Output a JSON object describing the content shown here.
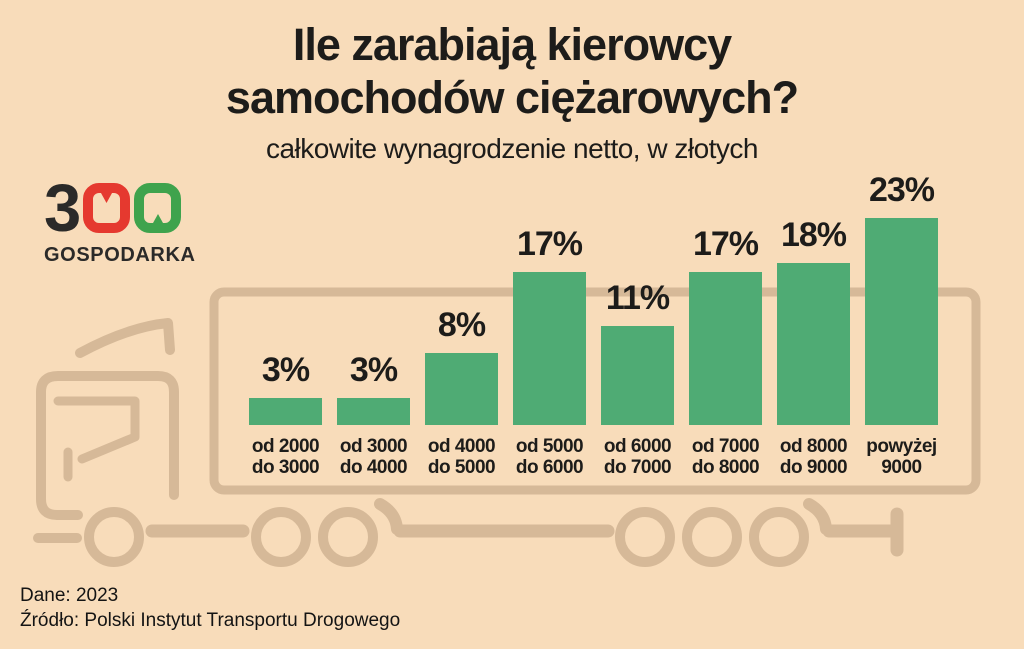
{
  "title": {
    "line1": "Ile zarabiają kierowcy",
    "line2": "samochodów ciężarowych?",
    "subtitle": "całkowite wynagrodzenie netto, w złotych"
  },
  "logo": {
    "digit": "3",
    "zeros": "00",
    "wordmark": "GOSPODARKA"
  },
  "chart_data": {
    "type": "bar",
    "title": "Ile zarabiają kierowcy samochodów ciężarowych?",
    "subtitle": "całkowite wynagrodzenie netto, w złotych",
    "unit": "%",
    "categories": [
      "od 2000 do 3000",
      "od 3000 do 4000",
      "od 4000 do 5000",
      "od 5000 do 6000",
      "od 6000 do 7000",
      "od 7000 do 8000",
      "od 8000 do 9000",
      "powyżej 9000"
    ],
    "category_lines": [
      [
        "od 2000",
        "do 3000"
      ],
      [
        "od 3000",
        "do 4000"
      ],
      [
        "od 4000",
        "do 5000"
      ],
      [
        "od 5000",
        "do 6000"
      ],
      [
        "od 6000",
        "do 7000"
      ],
      [
        "od 7000",
        "do 8000"
      ],
      [
        "od 8000",
        "do 9000"
      ],
      [
        "powyżej",
        "9000"
      ]
    ],
    "values": [
      3,
      3,
      8,
      17,
      11,
      17,
      18,
      23
    ],
    "data_labels": [
      "3%",
      "3%",
      "8%",
      "17%",
      "11%",
      "17%",
      "18%",
      "23%"
    ],
    "bar_color": "#4fab74",
    "ylim": [
      0,
      25
    ],
    "grid": false,
    "legend": false,
    "xlabel": "",
    "ylabel": ""
  },
  "footer": {
    "data_note": "Dane: 2023",
    "source_note": "Źródło: Polski Instytut Transportu Drogowego"
  },
  "colors": {
    "background": "#f8dcba",
    "truck_outline": "#d6b998",
    "bar_green": "#4fab74",
    "text_dark": "#1d1c1a",
    "logo_dark": "#2b2a29",
    "logo_red": "#e5392f",
    "logo_green": "#3fa34d"
  }
}
